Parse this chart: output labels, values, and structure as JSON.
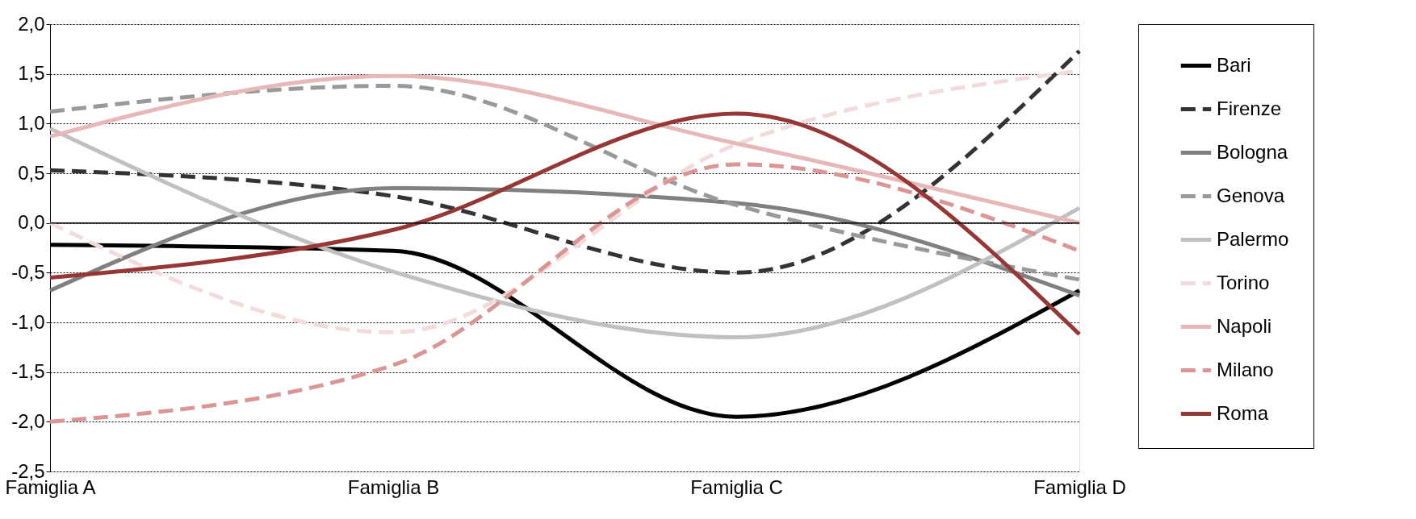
{
  "chart_data": {
    "type": "line",
    "categories": [
      "Famiglia A",
      "Famiglia B",
      "Famiglia C",
      "Famiglia D"
    ],
    "series": [
      {
        "name": "Bari",
        "color": "#000000",
        "line_style": "solid",
        "values": [
          -0.22,
          -0.28,
          -1.95,
          -0.68
        ]
      },
      {
        "name": "Firenze",
        "color": "#333333",
        "line_style": "dashed",
        "values": [
          0.53,
          0.27,
          -0.5,
          1.73
        ]
      },
      {
        "name": "Bologna",
        "color": "#808080",
        "line_style": "solid",
        "values": [
          -0.68,
          0.35,
          0.2,
          -0.73
        ]
      },
      {
        "name": "Genova",
        "color": "#999999",
        "line_style": "dashed",
        "values": [
          1.12,
          1.38,
          0.18,
          -0.57
        ]
      },
      {
        "name": "Palermo",
        "color": "#c0c0c0",
        "line_style": "solid",
        "values": [
          0.95,
          -0.49,
          -1.15,
          0.15
        ]
      },
      {
        "name": "Torino",
        "color": "#f2dcdb",
        "line_style": "dashed",
        "values": [
          0.0,
          -1.1,
          0.79,
          1.53
        ]
      },
      {
        "name": "Napoli",
        "color": "#e6b9b8",
        "line_style": "solid",
        "values": [
          0.87,
          1.48,
          0.8,
          0.0
        ]
      },
      {
        "name": "Milano",
        "color": "#d99694",
        "line_style": "dashed",
        "values": [
          -2.0,
          -1.43,
          0.59,
          -0.28
        ]
      },
      {
        "name": "Roma",
        "color": "#953735",
        "line_style": "solid",
        "values": [
          -0.55,
          -0.07,
          1.1,
          -1.12
        ]
      }
    ],
    "ylim": [
      -2.5,
      2.0
    ],
    "yticks": [
      {
        "value": -2.5,
        "label": "-2,5"
      },
      {
        "value": -2.0,
        "label": "-2,0"
      },
      {
        "value": -1.5,
        "label": "-1,5"
      },
      {
        "value": -1.0,
        "label": "-1,0"
      },
      {
        "value": -0.5,
        "label": "-0,5"
      },
      {
        "value": 0.0,
        "label": "0,0"
      },
      {
        "value": 0.5,
        "label": "0,5"
      },
      {
        "value": 1.0,
        "label": "1,0"
      },
      {
        "value": 1.5,
        "label": "1,5"
      },
      {
        "value": 2.0,
        "label": "2,0"
      }
    ],
    "ref_lines": [
      {
        "axis": "y",
        "value": 0,
        "color": "#000000"
      }
    ],
    "grid": "y",
    "legend": "right",
    "marker": "none"
  }
}
